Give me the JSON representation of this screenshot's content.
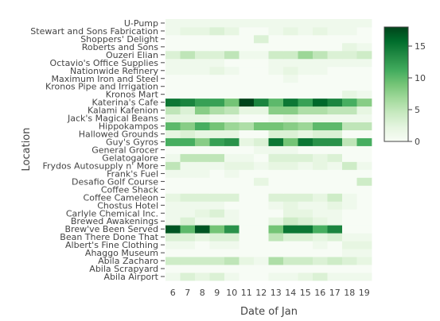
{
  "chart_data": {
    "type": "heatmap",
    "xlabel": "Date of Jan",
    "ylabel": "Location",
    "x": [
      "6",
      "7",
      "8",
      "9",
      "10",
      "11",
      "12",
      "13",
      "14",
      "15",
      "16",
      "17",
      "18",
      "19"
    ],
    "y": [
      "Abila Airport",
      "Abila Scrapyard",
      "Abila Zacharo",
      "Ahaggo Museum",
      "Albert's Fine Clothing",
      "Bean There Done That",
      "Brew've Been Served",
      "Brewed Awakenings",
      "Carlyle Chemical Inc.",
      "Chostus Hotel",
      "Coffee Cameleon",
      "Coffee Shack",
      "Desafio Golf Course",
      "Frank's Fuel",
      "Frydos Autosupply n' More",
      "Gelatogalore",
      "General Grocer",
      "Guy's Gyros",
      "Hallowed Grounds",
      "Hippokampos",
      "Jack's Magical Beans",
      "Kalami Kafenion",
      "Katerina's Cafe",
      "Kronos Mart",
      "Kronos Pipe and Irrigation",
      "Maximum Iron and Steel",
      "Nationwide Refinery",
      "Octavio's Office Supplies",
      "Ouzeri Elian",
      "Roberts and Sons",
      "Shoppers' Delight",
      "Stewart and Sons Fabrication",
      "U-Pump"
    ],
    "z": [
      [
        1,
        3,
        2,
        3,
        1,
        0,
        0,
        1,
        1,
        2,
        3,
        1,
        1,
        1
      ],
      [
        0,
        0,
        0,
        0,
        0,
        0,
        0,
        0,
        0,
        0,
        0,
        0,
        0,
        0
      ],
      [
        4,
        4,
        4,
        4,
        5,
        2,
        1,
        6,
        4,
        4,
        3,
        4,
        3,
        2
      ],
      [
        0,
        0,
        0,
        0,
        0,
        0,
        0,
        0,
        0,
        0,
        0,
        0,
        1,
        1
      ],
      [
        1,
        1,
        0,
        1,
        1,
        0,
        0,
        0,
        0,
        0,
        1,
        0,
        2,
        2
      ],
      [
        3,
        3,
        2,
        3,
        3,
        0,
        0,
        5,
        3,
        3,
        2,
        3,
        1,
        1
      ],
      [
        17,
        10,
        17,
        9,
        13,
        0,
        0,
        9,
        15,
        15,
        11,
        14,
        0,
        0
      ],
      [
        1,
        3,
        1,
        1,
        1,
        0,
        0,
        2,
        4,
        3,
        2,
        1,
        0,
        0
      ],
      [
        1,
        1,
        2,
        3,
        1,
        0,
        0,
        0,
        2,
        2,
        1,
        1,
        0,
        0
      ],
      [
        1,
        1,
        1,
        1,
        0,
        0,
        0,
        1,
        2,
        1,
        1,
        2,
        1,
        0
      ],
      [
        2,
        3,
        3,
        3,
        3,
        0,
        0,
        3,
        3,
        3,
        2,
        4,
        1,
        0
      ],
      [
        0,
        0,
        0,
        0,
        0,
        0,
        0,
        0,
        0,
        0,
        0,
        0,
        0,
        0
      ],
      [
        0,
        0,
        0,
        0,
        0,
        0,
        2,
        0,
        0,
        0,
        0,
        0,
        0,
        4
      ],
      [
        1,
        1,
        1,
        0,
        1,
        0,
        0,
        0,
        0,
        0,
        0,
        0,
        0,
        0
      ],
      [
        5,
        1,
        1,
        1,
        2,
        2,
        1,
        2,
        2,
        1,
        2,
        1,
        4,
        1
      ],
      [
        1,
        5,
        5,
        5,
        1,
        1,
        0,
        3,
        3,
        3,
        2,
        3,
        0,
        0
      ],
      [
        0,
        0,
        0,
        0,
        0,
        0,
        1,
        1,
        1,
        0,
        0,
        0,
        0,
        0
      ],
      [
        11,
        11,
        8,
        12,
        13,
        2,
        3,
        15,
        9,
        15,
        13,
        13,
        5,
        11
      ],
      [
        2,
        3,
        2,
        2,
        2,
        0,
        0,
        3,
        3,
        2,
        3,
        3,
        0,
        0
      ],
      [
        10,
        8,
        11,
        9,
        7,
        6,
        9,
        9,
        8,
        7,
        10,
        10,
        5,
        5
      ],
      [
        2,
        2,
        2,
        1,
        1,
        0,
        0,
        1,
        2,
        1,
        1,
        1,
        1,
        1
      ],
      [
        5,
        3,
        8,
        6,
        5,
        2,
        2,
        8,
        8,
        6,
        6,
        5,
        5,
        2
      ],
      [
        15,
        14,
        12,
        12,
        9,
        18,
        14,
        10,
        15,
        12,
        16,
        14,
        11,
        8
      ],
      [
        0,
        0,
        0,
        0,
        0,
        0,
        0,
        0,
        0,
        0,
        0,
        0,
        2,
        1
      ],
      [
        0,
        0,
        0,
        0,
        0,
        0,
        0,
        0,
        0,
        0,
        0,
        0,
        0,
        0
      ],
      [
        0,
        0,
        0,
        0,
        0,
        0,
        0,
        0,
        1,
        0,
        0,
        0,
        0,
        0
      ],
      [
        1,
        1,
        1,
        2,
        1,
        0,
        0,
        1,
        2,
        1,
        1,
        0,
        0,
        0
      ],
      [
        1,
        1,
        1,
        1,
        0,
        0,
        0,
        1,
        1,
        1,
        1,
        1,
        1,
        1
      ],
      [
        3,
        5,
        3,
        3,
        5,
        1,
        1,
        4,
        4,
        7,
        5,
        3,
        3,
        4
      ],
      [
        0,
        0,
        0,
        0,
        0,
        0,
        0,
        0,
        0,
        0,
        0,
        0,
        2,
        1
      ],
      [
        0,
        0,
        0,
        0,
        0,
        0,
        3,
        0,
        0,
        0,
        0,
        0,
        0,
        0
      ],
      [
        1,
        2,
        2,
        3,
        2,
        0,
        0,
        1,
        2,
        1,
        2,
        1,
        1,
        0
      ],
      [
        1,
        1,
        1,
        1,
        1,
        1,
        1,
        1,
        1,
        1,
        1,
        1,
        1,
        1
      ]
    ],
    "colorbar": {
      "min": 0,
      "max": 18,
      "ticks": [
        0,
        5,
        10,
        15
      ]
    },
    "colorscale": [
      "#f7fcf5",
      "#e5f5e0",
      "#c7e9c0",
      "#a1d99b",
      "#74c476",
      "#41ab5d",
      "#238b45",
      "#006d2c",
      "#00441b"
    ]
  }
}
